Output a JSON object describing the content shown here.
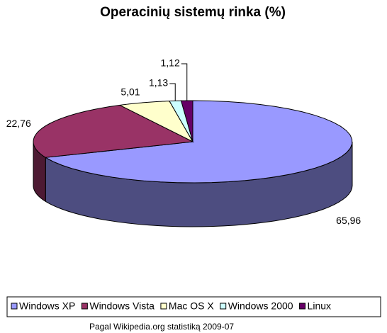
{
  "chart_data": {
    "type": "pie3d",
    "title": "Operacinių sistemų rinka (%)",
    "categories": [
      "Windows XP",
      "Windows Vista",
      "Mac OS X",
      "Windows 2000",
      "Linux"
    ],
    "values": [
      65.96,
      22.76,
      5.01,
      1.13,
      1.12
    ],
    "value_labels": [
      "65,96",
      "22,76",
      "5,01",
      "1,13",
      "1,12"
    ],
    "colors": [
      "#9999ff",
      "#993366",
      "#ffffcc",
      "#ccffff",
      "#660066"
    ],
    "legend": "bottom",
    "footnote": "Pagal Wikipedia.org statistiką 2009-07"
  }
}
